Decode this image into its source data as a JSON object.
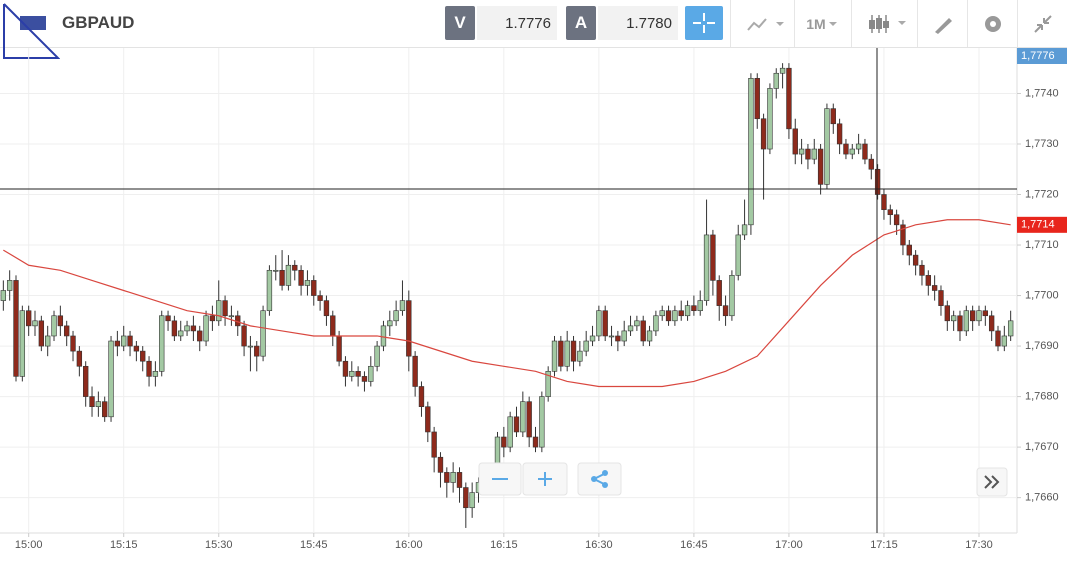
{
  "toolbar": {
    "symbol": "GBPAUD",
    "bid_label": "V",
    "bid": "1.7776",
    "ask_label": "A",
    "ask": "1.7780",
    "interval": "1M"
  },
  "chart_data": {
    "type": "candlestick",
    "x": [
      "14:56",
      "14:57",
      "14:58",
      "14:59",
      "15:00",
      "15:01",
      "15:02",
      "15:03",
      "15:04",
      "15:05",
      "15:06",
      "15:07",
      "15:08",
      "15:09",
      "15:10",
      "15:11",
      "15:12",
      "15:13",
      "15:14",
      "15:15",
      "15:16",
      "15:17",
      "15:18",
      "15:19",
      "15:20",
      "15:21",
      "15:22",
      "15:23",
      "15:24",
      "15:25",
      "15:26",
      "15:27",
      "15:28",
      "15:29",
      "15:30",
      "15:31",
      "15:32",
      "15:33",
      "15:34",
      "15:35",
      "15:36",
      "15:37",
      "15:38",
      "15:39",
      "15:40",
      "15:41",
      "15:42",
      "15:43",
      "15:44",
      "15:45",
      "15:46",
      "15:47",
      "15:48",
      "15:49",
      "15:50",
      "15:51",
      "15:52",
      "15:53",
      "15:54",
      "15:55",
      "15:56",
      "15:57",
      "15:58",
      "15:59",
      "16:00",
      "16:01",
      "16:02",
      "16:03",
      "16:04",
      "16:05",
      "16:06",
      "16:07",
      "16:08",
      "16:09",
      "16:10",
      "16:11",
      "16:12",
      "16:13",
      "16:14",
      "16:15",
      "16:16",
      "16:17",
      "16:18",
      "16:19",
      "16:20",
      "16:21",
      "16:22",
      "16:23",
      "16:24",
      "16:25",
      "16:26",
      "16:27",
      "16:28",
      "16:29",
      "16:30",
      "16:31",
      "16:32",
      "16:33",
      "16:34",
      "16:35",
      "16:36",
      "16:37",
      "16:38",
      "16:39",
      "16:40",
      "16:41",
      "16:42",
      "16:43",
      "16:44",
      "16:45",
      "16:46",
      "16:47",
      "16:48",
      "16:49",
      "16:50",
      "16:51",
      "16:52",
      "16:53",
      "16:54",
      "16:55",
      "16:56",
      "16:57",
      "16:58",
      "16:59",
      "17:00",
      "17:01",
      "17:02",
      "17:03",
      "17:04",
      "17:05",
      "17:06",
      "17:07",
      "17:08",
      "17:09",
      "17:10",
      "17:11",
      "17:12",
      "17:13",
      "17:14",
      "17:15",
      "17:16",
      "17:17",
      "17:18",
      "17:19",
      "17:20",
      "17:21",
      "17:22",
      "17:23",
      "17:24",
      "17:25",
      "17:26",
      "17:27",
      "17:28",
      "17:29",
      "17:30",
      "17:31",
      "17:32",
      "17:33",
      "17:34",
      "17:35"
    ],
    "open": [
      1.7699,
      1.7701,
      1.7703,
      1.7684,
      1.7697,
      1.7694,
      1.7695,
      1.769,
      1.7692,
      1.7696,
      1.7694,
      1.7692,
      1.7689,
      1.7686,
      1.768,
      1.7678,
      1.7679,
      1.7676,
      1.7691,
      1.769,
      1.7692,
      1.769,
      1.7689,
      1.7687,
      1.7684,
      1.7685,
      1.7696,
      1.7695,
      1.7692,
      1.7693,
      1.7694,
      1.7693,
      1.7691,
      1.7696,
      1.7695,
      1.7699,
      1.7696,
      1.7696,
      1.7694,
      1.769,
      1.769,
      1.7688,
      1.7697,
      1.7705,
      1.7705,
      1.7702,
      1.7706,
      1.7705,
      1.7702,
      1.7703,
      1.77,
      1.7699,
      1.7696,
      1.7692,
      1.7687,
      1.7684,
      1.7685,
      1.7684,
      1.7683,
      1.7686,
      1.769,
      1.7694,
      1.7695,
      1.7697,
      1.7699,
      1.7688,
      1.7682,
      1.7678,
      1.7673,
      1.7668,
      1.7665,
      1.7663,
      1.7665,
      1.7662,
      1.7658,
      1.7661,
      1.7663,
      1.7664,
      1.7663,
      1.7672,
      1.767,
      1.7676,
      1.7673,
      1.7679,
      1.7672,
      1.767,
      1.768,
      1.7685,
      1.7691,
      1.7686,
      1.7691,
      1.7687,
      1.7689,
      1.7691,
      1.7692,
      1.7697,
      1.7692,
      1.7692,
      1.7691,
      1.7693,
      1.7694,
      1.7695,
      1.7691,
      1.7693,
      1.7696,
      1.7697,
      1.7695,
      1.7697,
      1.7696,
      1.7698,
      1.7697,
      1.7699,
      1.7712,
      1.7703,
      1.7698,
      1.7696,
      1.7704,
      1.7712,
      1.7714,
      1.7743,
      1.7735,
      1.7729,
      1.7741,
      1.7744,
      1.7745,
      1.7733,
      1.7728,
      1.7729,
      1.7727,
      1.7729,
      1.7722,
      1.7737,
      1.7734,
      1.773,
      1.7728,
      1.7729,
      1.773,
      1.7727,
      1.7725,
      1.772,
      1.7717,
      1.7716,
      1.7714,
      1.771,
      1.7708,
      1.7706,
      1.7704,
      1.7702,
      1.7701,
      1.7698,
      1.7695,
      1.7696,
      1.7693,
      1.7697,
      1.7695,
      1.7697,
      1.7696,
      1.7693,
      1.769,
      1.7692
    ],
    "high": [
      1.7703,
      1.7705,
      1.7704,
      1.7698,
      1.7698,
      1.7697,
      1.7696,
      1.7694,
      1.7697,
      1.7698,
      1.7695,
      1.7693,
      1.769,
      1.7687,
      1.7682,
      1.7681,
      1.768,
      1.7692,
      1.7693,
      1.7694,
      1.7693,
      1.7691,
      1.769,
      1.7688,
      1.7687,
      1.7697,
      1.7697,
      1.7696,
      1.7695,
      1.7695,
      1.7696,
      1.7694,
      1.7697,
      1.7698,
      1.7703,
      1.77,
      1.7698,
      1.7697,
      1.7695,
      1.7692,
      1.7691,
      1.7698,
      1.7706,
      1.7708,
      1.7709,
      1.7708,
      1.7707,
      1.7706,
      1.7705,
      1.7704,
      1.7701,
      1.77,
      1.7697,
      1.7693,
      1.7688,
      1.7687,
      1.7686,
      1.7685,
      1.7688,
      1.7691,
      1.7695,
      1.7697,
      1.7699,
      1.7703,
      1.7701,
      1.7689,
      1.7683,
      1.7679,
      1.7674,
      1.7669,
      1.7666,
      1.7667,
      1.7666,
      1.7663,
      1.7663,
      1.7664,
      1.7665,
      1.7666,
      1.7673,
      1.7674,
      1.7677,
      1.7678,
      1.7681,
      1.768,
      1.7674,
      1.7681,
      1.7686,
      1.7692,
      1.7692,
      1.7693,
      1.7692,
      1.7691,
      1.7693,
      1.7694,
      1.7698,
      1.7698,
      1.7694,
      1.7693,
      1.7695,
      1.7696,
      1.7696,
      1.7696,
      1.7694,
      1.7697,
      1.7698,
      1.7698,
      1.7698,
      1.7699,
      1.7699,
      1.77,
      1.7701,
      1.7719,
      1.7713,
      1.7704,
      1.77,
      1.7705,
      1.7714,
      1.7719,
      1.7744,
      1.7744,
      1.7736,
      1.7742,
      1.7745,
      1.7746,
      1.7746,
      1.7735,
      1.7731,
      1.773,
      1.7731,
      1.773,
      1.7738,
      1.7738,
      1.7735,
      1.7731,
      1.773,
      1.7732,
      1.7731,
      1.7728,
      1.7726,
      1.7721,
      1.7718,
      1.7717,
      1.7715,
      1.7711,
      1.7709,
      1.7707,
      1.7705,
      1.7704,
      1.7702,
      1.7699,
      1.7697,
      1.7697,
      1.7698,
      1.7698,
      1.7698,
      1.7698,
      1.7697,
      1.7694,
      1.7694,
      1.7697
    ],
    "low": [
      1.7697,
      1.7699,
      1.7683,
      1.7683,
      1.7692,
      1.7692,
      1.7689,
      1.7688,
      1.7691,
      1.7692,
      1.769,
      1.7687,
      1.7684,
      1.7678,
      1.7676,
      1.7676,
      1.7675,
      1.7675,
      1.7688,
      1.7689,
      1.7688,
      1.7687,
      1.7685,
      1.7682,
      1.7682,
      1.7684,
      1.7693,
      1.7691,
      1.7691,
      1.7692,
      1.7691,
      1.7689,
      1.769,
      1.7693,
      1.7694,
      1.7694,
      1.7694,
      1.7692,
      1.7688,
      1.7685,
      1.7685,
      1.7687,
      1.7696,
      1.7703,
      1.7701,
      1.7701,
      1.7703,
      1.77,
      1.77,
      1.7698,
      1.7697,
      1.7694,
      1.769,
      1.7686,
      1.7682,
      1.7683,
      1.7682,
      1.7681,
      1.7682,
      1.7685,
      1.7689,
      1.7692,
      1.7694,
      1.7696,
      1.7685,
      1.768,
      1.7676,
      1.7671,
      1.7665,
      1.7662,
      1.766,
      1.7661,
      1.7659,
      1.7654,
      1.7656,
      1.7659,
      1.7661,
      1.7661,
      1.7662,
      1.7668,
      1.7669,
      1.7672,
      1.7672,
      1.767,
      1.7669,
      1.7669,
      1.7679,
      1.7684,
      1.7685,
      1.7685,
      1.7685,
      1.7686,
      1.7688,
      1.769,
      1.7691,
      1.7691,
      1.769,
      1.7689,
      1.769,
      1.7692,
      1.7693,
      1.769,
      1.769,
      1.7692,
      1.7695,
      1.7694,
      1.7694,
      1.7695,
      1.7695,
      1.7696,
      1.7696,
      1.7698,
      1.77,
      1.7695,
      1.7694,
      1.7695,
      1.7703,
      1.7711,
      1.7712,
      1.7733,
      1.7719,
      1.7728,
      1.7739,
      1.7741,
      1.7731,
      1.7726,
      1.7726,
      1.7725,
      1.7726,
      1.772,
      1.7721,
      1.7732,
      1.7728,
      1.7727,
      1.7727,
      1.7728,
      1.7726,
      1.7723,
      1.7719,
      1.7715,
      1.7714,
      1.7712,
      1.7708,
      1.7706,
      1.7704,
      1.7702,
      1.77,
      1.7699,
      1.7696,
      1.7693,
      1.7693,
      1.7691,
      1.7692,
      1.7693,
      1.7694,
      1.7694,
      1.7691,
      1.7689,
      1.7689,
      1.7691
    ],
    "close": [
      1.7701,
      1.7703,
      1.7684,
      1.7697,
      1.7694,
      1.7695,
      1.769,
      1.7692,
      1.7696,
      1.7694,
      1.7692,
      1.7689,
      1.7686,
      1.768,
      1.7678,
      1.7679,
      1.7676,
      1.7691,
      1.769,
      1.7692,
      1.769,
      1.7689,
      1.7687,
      1.7684,
      1.7685,
      1.7696,
      1.7695,
      1.7692,
      1.7693,
      1.7694,
      1.7693,
      1.7691,
      1.7696,
      1.7695,
      1.7699,
      1.7696,
      1.7696,
      1.7694,
      1.769,
      1.769,
      1.7688,
      1.7697,
      1.7705,
      1.7705,
      1.7702,
      1.7706,
      1.7705,
      1.7702,
      1.7703,
      1.77,
      1.7699,
      1.7696,
      1.7692,
      1.7687,
      1.7684,
      1.7685,
      1.7684,
      1.7683,
      1.7686,
      1.769,
      1.7694,
      1.7695,
      1.7697,
      1.7699,
      1.7688,
      1.7682,
      1.7678,
      1.7673,
      1.7668,
      1.7665,
      1.7663,
      1.7665,
      1.7662,
      1.7658,
      1.7661,
      1.7663,
      1.7664,
      1.7663,
      1.7672,
      1.767,
      1.7676,
      1.7673,
      1.7679,
      1.7672,
      1.767,
      1.768,
      1.7685,
      1.7691,
      1.7686,
      1.7691,
      1.7687,
      1.7689,
      1.7691,
      1.7692,
      1.7697,
      1.7692,
      1.7692,
      1.7691,
      1.7693,
      1.7694,
      1.7695,
      1.7691,
      1.7693,
      1.7696,
      1.7697,
      1.7695,
      1.7697,
      1.7696,
      1.7698,
      1.7697,
      1.7699,
      1.7712,
      1.7703,
      1.7698,
      1.7696,
      1.7704,
      1.7712,
      1.7714,
      1.7743,
      1.7735,
      1.7729,
      1.7741,
      1.7744,
      1.7745,
      1.7733,
      1.7728,
      1.7729,
      1.7727,
      1.7729,
      1.7722,
      1.7737,
      1.7734,
      1.773,
      1.7728,
      1.7729,
      1.773,
      1.7727,
      1.7725,
      1.772,
      1.7717,
      1.7716,
      1.7714,
      1.771,
      1.7708,
      1.7706,
      1.7704,
      1.7702,
      1.7701,
      1.7698,
      1.7695,
      1.7696,
      1.7693,
      1.7697,
      1.7695,
      1.7697,
      1.7696,
      1.7693,
      1.769,
      1.7692,
      1.7695
    ],
    "up_color": "#a3c9a3",
    "down_color": "#8e2a1c",
    "moving_average": {
      "color": "#d9473f",
      "x": [
        "14:56",
        "15:00",
        "15:05",
        "15:10",
        "15:15",
        "15:20",
        "15:25",
        "15:30",
        "15:35",
        "15:40",
        "15:45",
        "15:50",
        "15:55",
        "16:00",
        "16:05",
        "16:10",
        "16:15",
        "16:20",
        "16:25",
        "16:30",
        "16:35",
        "16:40",
        "16:45",
        "16:50",
        "16:55",
        "17:00",
        "17:05",
        "17:10",
        "17:15",
        "17:20",
        "17:25",
        "17:30",
        "17:35"
      ],
      "values": [
        1.7709,
        1.7706,
        1.7705,
        1.7703,
        1.7701,
        1.7699,
        1.7697,
        1.7696,
        1.7694,
        1.7693,
        1.7692,
        1.7692,
        1.7692,
        1.7691,
        1.7689,
        1.7687,
        1.7686,
        1.7685,
        1.7683,
        1.7682,
        1.7682,
        1.7682,
        1.7683,
        1.7685,
        1.7688,
        1.7695,
        1.7702,
        1.7708,
        1.7712,
        1.7714,
        1.7715,
        1.7715,
        1.7714
      ]
    },
    "xlim": [
      "14:55",
      "17:36"
    ],
    "xticks": [
      "15:00",
      "15:15",
      "15:30",
      "15:45",
      "16:00",
      "16:15",
      "16:30",
      "16:45",
      "17:00",
      "17:15",
      "17:30"
    ],
    "ylim": [
      1.7653,
      1.7749
    ],
    "yticks": [
      {
        "value": 1.766,
        "label": "1,7660"
      },
      {
        "value": 1.767,
        "label": "1,7670"
      },
      {
        "value": 1.768,
        "label": "1,7680"
      },
      {
        "value": 1.769,
        "label": "1,7690"
      },
      {
        "value": 1.77,
        "label": "1,7700"
      },
      {
        "value": 1.771,
        "label": "1,7710"
      },
      {
        "value": 1.772,
        "label": "1,7720"
      },
      {
        "value": 1.773,
        "label": "1,7730"
      },
      {
        "value": 1.774,
        "label": "1,7740"
      }
    ],
    "grid": true,
    "price_tags": [
      {
        "value": 1.7776,
        "label": "1,7776",
        "color": "#5b9bd5"
      },
      {
        "value": 1.7714,
        "label": "1,7714",
        "color": "#e8251c"
      }
    ]
  }
}
